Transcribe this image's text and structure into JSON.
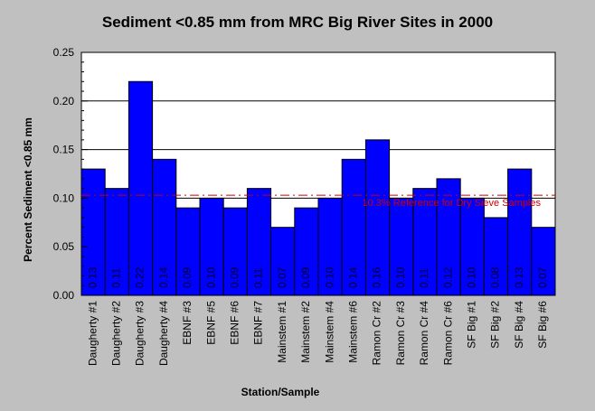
{
  "chart_data": {
    "type": "bar",
    "title": "Sediment <0.85 mm from MRC Big River Sites in 2000",
    "xlabel": "Station/Sample",
    "ylabel": "Percent Sediment <0.85 mm",
    "ylim": [
      0,
      0.25
    ],
    "yticks": [
      "0.00",
      "0.05",
      "0.10",
      "0.15",
      "0.20",
      "0.25"
    ],
    "grid": true,
    "categories": [
      "Daugherty #1",
      "Daugherty #2",
      "Daugherty #3",
      "Daugherty #4",
      "EBNF #3",
      "EBNF #5",
      "EBNF #6",
      "EBNF #7",
      "Mainstem #1",
      "Mainstem #2",
      "Mainstem #4",
      "Mainstem #6",
      "Ramon Cr #2",
      "Ramon Cr #3",
      "Ramon Cr #4",
      "Ramon Cr #6",
      "SF Big #1",
      "SF Big #2",
      "SF Big #4",
      "SF Big #6"
    ],
    "values": [
      0.13,
      0.11,
      0.22,
      0.14,
      0.09,
      0.1,
      0.09,
      0.11,
      0.07,
      0.09,
      0.1,
      0.14,
      0.16,
      0.1,
      0.11,
      0.12,
      0.1,
      0.08,
      0.13,
      0.07
    ],
    "data_labels": [
      "0.13",
      "0.11",
      "0.22",
      "0.14",
      "0.09",
      "0.10",
      "0.09",
      "0.11",
      "0.07",
      "0.09",
      "0.10",
      "0.14",
      "0.16",
      "0.10",
      "0.11",
      "0.12",
      "0.10",
      "0.08",
      "0.13",
      "0.07"
    ],
    "reference": {
      "value": 0.103,
      "label": "10.3% Reference for Dry Sieve Samples",
      "color": "#cc0000"
    },
    "bar_color": "#0000ff",
    "label_color": "#00002a"
  }
}
